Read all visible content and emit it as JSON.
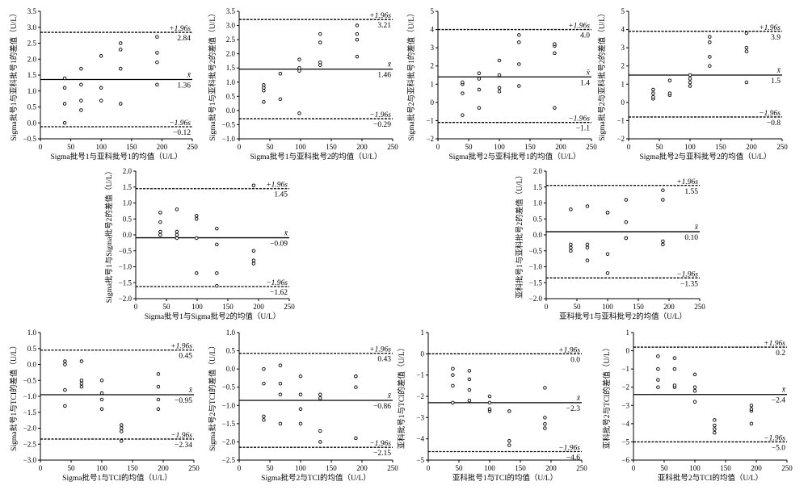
{
  "chart_data": [
    {
      "type": "scatter",
      "xlabel": "Sigma批号1与亚科批号1的均值（U/L）",
      "ylabel": "Sigma批号1与亚科批号1的差值（U/L）",
      "xlim": [
        0,
        250
      ],
      "ylim": [
        -0.5,
        3.5
      ],
      "xticks": [
        0,
        50,
        100,
        150,
        200,
        250
      ],
      "yticks": [
        -0.5,
        0.0,
        0.5,
        1.0,
        1.5,
        2.0,
        2.5,
        3.0,
        3.5
      ],
      "upper_loa": 2.84,
      "mean": 1.36,
      "lower_loa": -0.12,
      "upper_label": "+1.96s",
      "mean_label": "x̄",
      "lower_label": "−1.96s",
      "upper_value_text": "2.84",
      "mean_value_text": "1.36",
      "lower_value_text": "−0.12",
      "points": [
        [
          40,
          0.0
        ],
        [
          40,
          0.6
        ],
        [
          40,
          1.1
        ],
        [
          40,
          1.4
        ],
        [
          67,
          0.4
        ],
        [
          67,
          0.7
        ],
        [
          67,
          1.2
        ],
        [
          67,
          1.7
        ],
        [
          100,
          0.7
        ],
        [
          100,
          1.1
        ],
        [
          100,
          2.1
        ],
        [
          132,
          0.6
        ],
        [
          132,
          1.7
        ],
        [
          132,
          2.3
        ],
        [
          132,
          2.5
        ],
        [
          192,
          1.2
        ],
        [
          192,
          1.9
        ],
        [
          192,
          2.2
        ],
        [
          192,
          2.7
        ]
      ]
    },
    {
      "type": "scatter",
      "xlabel": "Sigma批号1与亚科批号2的均值（U/L）",
      "ylabel": "Sigma批号1与亚科批号2的差值（U/L）",
      "xlim": [
        0,
        250
      ],
      "ylim": [
        -1.0,
        3.5
      ],
      "xticks": [
        0,
        50,
        100,
        150,
        200,
        250
      ],
      "yticks": [
        -1.0,
        -0.5,
        0.0,
        0.5,
        1.0,
        1.5,
        2.0,
        2.5,
        3.0,
        3.5
      ],
      "upper_loa": 3.21,
      "mean": 1.46,
      "lower_loa": -0.29,
      "upper_label": "+1.96s",
      "mean_label": "x̄",
      "lower_label": "−1.96s",
      "upper_value_text": "3.21",
      "mean_value_text": "1.46",
      "lower_value_text": "−0.29",
      "points": [
        [
          40,
          0.3
        ],
        [
          40,
          0.7
        ],
        [
          40,
          0.8
        ],
        [
          40,
          0.9
        ],
        [
          67,
          0.4
        ],
        [
          67,
          1.3
        ],
        [
          98,
          1.4
        ],
        [
          98,
          1.5
        ],
        [
          98,
          1.8
        ],
        [
          98,
          -0.1
        ],
        [
          132,
          1.6
        ],
        [
          132,
          1.7
        ],
        [
          132,
          2.4
        ],
        [
          132,
          2.7
        ],
        [
          192,
          1.9
        ],
        [
          192,
          2.5
        ],
        [
          192,
          2.7
        ],
        [
          192,
          3.0
        ]
      ]
    },
    {
      "type": "scatter",
      "xlabel": "Sigma批号2与亚科批号1的均值（U/L）",
      "ylabel": "Sigma批号2与亚科批号1的差值（U/L）",
      "xlim": [
        0,
        250
      ],
      "ylim": [
        -2,
        5
      ],
      "xticks": [
        0,
        50,
        100,
        150,
        200,
        250
      ],
      "yticks": [
        -2,
        -1,
        0,
        1,
        2,
        3,
        4,
        5
      ],
      "upper_loa": 4.0,
      "mean": 1.4,
      "lower_loa": -1.1,
      "upper_label": "+1.96s",
      "mean_label": "x̄",
      "lower_label": "−1.96s",
      "upper_value_text": "4.0",
      "mean_value_text": "1.4",
      "lower_value_text": "−1.1",
      "points": [
        [
          40,
          -0.7
        ],
        [
          40,
          0.5
        ],
        [
          40,
          1.0
        ],
        [
          40,
          1.1
        ],
        [
          67,
          -0.3
        ],
        [
          67,
          0.7
        ],
        [
          67,
          1.3
        ],
        [
          67,
          1.6
        ],
        [
          100,
          0.6
        ],
        [
          100,
          0.8
        ],
        [
          100,
          1.5
        ],
        [
          100,
          2.3
        ],
        [
          132,
          0.9
        ],
        [
          132,
          2.1
        ],
        [
          132,
          3.3
        ],
        [
          132,
          3.7
        ],
        [
          190,
          -0.3
        ],
        [
          190,
          2.7
        ],
        [
          190,
          3.1
        ],
        [
          190,
          3.2
        ]
      ]
    },
    {
      "type": "scatter",
      "xlabel": "Sigma批号2与亚科批号2的均值（U/L）",
      "ylabel": "Sigma批号2与亚科批号2的差值（U/L）",
      "xlim": [
        0,
        250
      ],
      "ylim": [
        -2,
        5
      ],
      "xticks": [
        0,
        50,
        100,
        150,
        200,
        250
      ],
      "yticks": [
        -2,
        -1,
        0,
        1,
        2,
        3,
        4,
        5
      ],
      "upper_loa": 3.9,
      "mean": 1.5,
      "lower_loa": -0.8,
      "upper_label": "+1.96s",
      "mean_label": "x̄",
      "lower_label": "−1.96s",
      "upper_value_text": "3.9",
      "mean_value_text": "1.5",
      "lower_value_text": "−0.8",
      "points": [
        [
          40,
          0.2
        ],
        [
          40,
          0.3
        ],
        [
          40,
          0.5
        ],
        [
          40,
          0.7
        ],
        [
          67,
          0.4
        ],
        [
          67,
          0.5
        ],
        [
          67,
          1.2
        ],
        [
          100,
          0.9
        ],
        [
          100,
          1.1
        ],
        [
          100,
          1.3
        ],
        [
          100,
          1.5
        ],
        [
          132,
          2.0
        ],
        [
          132,
          2.5
        ],
        [
          132,
          3.3
        ],
        [
          132,
          3.6
        ],
        [
          192,
          1.1
        ],
        [
          192,
          2.8
        ],
        [
          192,
          3.0
        ],
        [
          192,
          3.8
        ]
      ]
    },
    {
      "type": "scatter",
      "xlabel": "Sigma批号1与Sigma批号2的均值（U/L）",
      "ylabel": "Sigma批号1与Sigma批号2的差值（U/L）",
      "xlim": [
        0,
        250
      ],
      "ylim": [
        -2.0,
        2.0
      ],
      "xticks": [
        0,
        50,
        100,
        150,
        200,
        250
      ],
      "yticks": [
        -2.0,
        -1.5,
        -1.0,
        -0.5,
        0.0,
        0.5,
        1.0,
        1.5,
        2.0
      ],
      "upper_loa": 1.45,
      "mean": -0.09,
      "lower_loa": -1.62,
      "upper_label": "+1.96s",
      "mean_label": "x̄",
      "lower_label": "−1.96s",
      "upper_value_text": "1.45",
      "mean_value_text": "−0.09",
      "lower_value_text": "−1.62",
      "points": [
        [
          40,
          0.0
        ],
        [
          40,
          0.1
        ],
        [
          40,
          0.4
        ],
        [
          40,
          0.7
        ],
        [
          67,
          -0.1
        ],
        [
          67,
          0.0
        ],
        [
          67,
          0.1
        ],
        [
          67,
          0.8
        ],
        [
          99,
          -1.2
        ],
        [
          99,
          -0.1
        ],
        [
          99,
          0.5
        ],
        [
          99,
          0.6
        ],
        [
          132,
          -1.6
        ],
        [
          132,
          -1.2
        ],
        [
          132,
          -0.3
        ],
        [
          132,
          0.2
        ],
        [
          192,
          -0.9
        ],
        [
          192,
          -0.8
        ],
        [
          192,
          -0.5
        ],
        [
          192,
          1.55
        ]
      ]
    },
    {
      "type": "scatter",
      "xlabel": "亚科批号1与亚科批号2的均值（U/L）",
      "ylabel": "亚科批号1与亚科批号2的差值（U/L）",
      "xlim": [
        0,
        250
      ],
      "ylim": [
        -2.0,
        2.0
      ],
      "xticks": [
        0,
        50,
        100,
        150,
        200,
        250
      ],
      "yticks": [
        -2.0,
        -1.5,
        -1.0,
        -0.5,
        0.0,
        0.5,
        1.0,
        1.5,
        2.0
      ],
      "upper_loa": 1.55,
      "mean": 0.1,
      "lower_loa": -1.35,
      "upper_label": "+1.96s",
      "mean_label": "x̄",
      "lower_label": "−1.96s",
      "upper_value_text": "1.55",
      "mean_value_text": "0.10",
      "lower_value_text": "−1.35",
      "points": [
        [
          40,
          -0.5
        ],
        [
          40,
          -0.4
        ],
        [
          40,
          -0.3
        ],
        [
          40,
          0.8
        ],
        [
          67,
          -0.8
        ],
        [
          67,
          -0.4
        ],
        [
          67,
          -0.3
        ],
        [
          67,
          0.9
        ],
        [
          100,
          -1.2
        ],
        [
          100,
          -0.6
        ],
        [
          100,
          0.7
        ],
        [
          100,
          0.7
        ],
        [
          130,
          -0.1
        ],
        [
          130,
          -0.1
        ],
        [
          130,
          0.4
        ],
        [
          130,
          1.1
        ],
        [
          190,
          -0.3
        ],
        [
          190,
          -0.2
        ],
        [
          190,
          1.1
        ],
        [
          190,
          1.4
        ]
      ]
    },
    {
      "type": "scatter",
      "xlabel": "Sigma批号1与TCI的均值（U/L）",
      "ylabel": "Sigma批号1与TCI的差值（U/L）",
      "xlim": [
        0,
        250
      ],
      "ylim": [
        -3.0,
        1.0
      ],
      "xticks": [
        0,
        50,
        100,
        150,
        200,
        250
      ],
      "yticks": [
        -3.0,
        -2.5,
        -2.0,
        -1.5,
        -1.0,
        -0.5,
        0.0,
        0.5,
        1.0
      ],
      "upper_loa": 0.45,
      "mean": -0.95,
      "lower_loa": -2.34,
      "upper_label": "+1.96s",
      "mean_label": "x̄",
      "lower_label": "−1.96s",
      "upper_value_text": "0.45",
      "mean_value_text": "−0.95",
      "lower_value_text": "−2.34",
      "points": [
        [
          40,
          -1.3
        ],
        [
          40,
          -0.8
        ],
        [
          40,
          0.0
        ],
        [
          40,
          0.1
        ],
        [
          67,
          -0.7
        ],
        [
          67,
          -0.6
        ],
        [
          67,
          -0.5
        ],
        [
          67,
          0.1
        ],
        [
          100,
          -1.4
        ],
        [
          100,
          -1.1
        ],
        [
          100,
          -0.9
        ],
        [
          100,
          -0.5
        ],
        [
          132,
          -2.4
        ],
        [
          132,
          -2.1
        ],
        [
          132,
          -2.0
        ],
        [
          132,
          -1.9
        ],
        [
          192,
          -1.4
        ],
        [
          192,
          -1.1
        ],
        [
          192,
          -0.7
        ],
        [
          192,
          -0.3
        ]
      ]
    },
    {
      "type": "scatter",
      "xlabel": "Sigma批号2与TCI的均值（U/L）",
      "ylabel": "Sigma批号2与TCI的差值（U/L）",
      "xlim": [
        0,
        250
      ],
      "ylim": [
        -2.5,
        1.0
      ],
      "xticks": [
        0,
        50,
        100,
        150,
        200,
        250
      ],
      "yticks": [
        -2.5,
        -2.0,
        -1.5,
        -1.0,
        -0.5,
        0.0,
        0.5,
        1.0
      ],
      "upper_loa": 0.43,
      "mean": -0.86,
      "lower_loa": -2.15,
      "upper_label": "+1.96s",
      "mean_label": "x̄",
      "lower_label": "−1.96s",
      "upper_value_text": "0.43",
      "mean_value_text": "−0.86",
      "lower_value_text": "−2.15",
      "points": [
        [
          40,
          -1.4
        ],
        [
          40,
          -1.3
        ],
        [
          40,
          -0.4
        ],
        [
          40,
          0.0
        ],
        [
          67,
          -1.5
        ],
        [
          67,
          -0.7
        ],
        [
          67,
          -0.4
        ],
        [
          67,
          0.1
        ],
        [
          100,
          -1.5
        ],
        [
          100,
          -1.1
        ],
        [
          100,
          -0.7
        ],
        [
          100,
          -0.2
        ],
        [
          132,
          -2.0
        ],
        [
          132,
          -1.7
        ],
        [
          132,
          -0.8
        ],
        [
          132,
          -0.7
        ],
        [
          190,
          -1.9
        ],
        [
          190,
          -0.5
        ],
        [
          190,
          -0.2
        ],
        [
          190,
          -0.2
        ]
      ]
    },
    {
      "type": "scatter",
      "xlabel": "亚科批号1与TCI的均值（U/L）",
      "ylabel": "亚科批号1与TCI的差值（U/L）",
      "xlim": [
        0,
        250
      ],
      "ylim": [
        -5,
        1
      ],
      "xticks": [
        0,
        50,
        100,
        150,
        200,
        250
      ],
      "yticks": [
        -5,
        -4,
        -3,
        -2,
        -1,
        0,
        1
      ],
      "upper_loa": 0.0,
      "mean": -2.3,
      "lower_loa": -4.6,
      "upper_label": "+1.96s",
      "mean_label": "x̄",
      "lower_label": "−1.96s",
      "upper_value_text": "0.0",
      "mean_value_text": "−2.3",
      "lower_value_text": "−4.6",
      "points": [
        [
          40,
          -2.3
        ],
        [
          40,
          -1.5
        ],
        [
          40,
          -1.0
        ],
        [
          40,
          -0.7
        ],
        [
          67,
          -2.2
        ],
        [
          67,
          -1.7
        ],
        [
          67,
          -1.2
        ],
        [
          67,
          -0.8
        ],
        [
          100,
          -2.7
        ],
        [
          100,
          -2.6
        ],
        [
          100,
          -2.3
        ],
        [
          100,
          -2.0
        ],
        [
          132,
          -4.3
        ],
        [
          132,
          -4.1
        ],
        [
          132,
          -2.7
        ],
        [
          190,
          -3.5
        ],
        [
          190,
          -3.3
        ],
        [
          190,
          -3.0
        ],
        [
          190,
          -1.6
        ]
      ]
    },
    {
      "type": "scatter",
      "xlabel": "亚科批号2与TCI的均值（U/L）",
      "ylabel": "亚科批号2与TCI的差值（U/L）",
      "xlim": [
        0,
        250
      ],
      "ylim": [
        -6,
        1
      ],
      "xticks": [
        0,
        50,
        100,
        150,
        200,
        250
      ],
      "yticks": [
        -6,
        -5,
        -4,
        -3,
        -2,
        -1,
        0,
        1
      ],
      "upper_loa": 0.2,
      "mean": -2.4,
      "lower_loa": -5.0,
      "upper_label": "+1.96s",
      "mean_label": "x̄",
      "lower_label": "−1.96s",
      "upper_value_text": "0.2",
      "mean_value_text": "−2.4",
      "lower_value_text": "−5.0",
      "points": [
        [
          40,
          -2.0
        ],
        [
          40,
          -1.6
        ],
        [
          40,
          -1.0
        ],
        [
          40,
          -0.3
        ],
        [
          67,
          -2.0
        ],
        [
          67,
          -1.9
        ],
        [
          67,
          -1.0
        ],
        [
          67,
          -0.4
        ],
        [
          100,
          -2.8
        ],
        [
          100,
          -2.2
        ],
        [
          100,
          -2.0
        ],
        [
          100,
          -1.3
        ],
        [
          132,
          -4.5
        ],
        [
          132,
          -4.3
        ],
        [
          132,
          -4.1
        ],
        [
          132,
          -3.8
        ],
        [
          192,
          -4.0
        ],
        [
          192,
          -3.3
        ],
        [
          192,
          -3.2
        ],
        [
          192,
          -3.0
        ]
      ]
    }
  ]
}
